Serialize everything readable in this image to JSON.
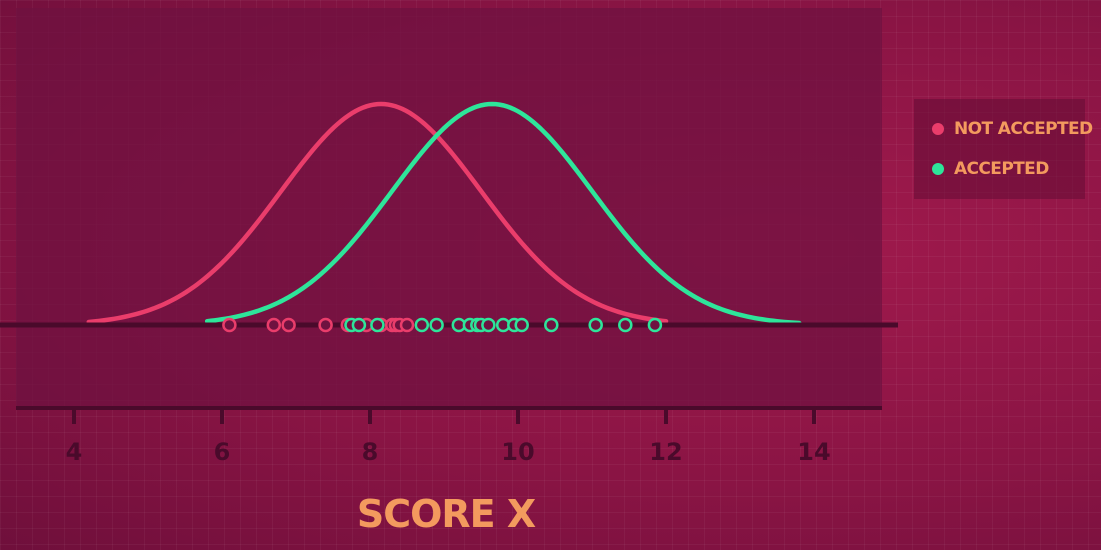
{
  "chart_data": {
    "type": "line",
    "title": "",
    "xlabel": "SCORE X",
    "ylabel": "",
    "xlim": [
      3.2,
      14.9
    ],
    "xticks": [
      4,
      6,
      8,
      10,
      12,
      14
    ],
    "grid": false,
    "legend_position": "right",
    "series": [
      {
        "name": "NOT ACCEPTED",
        "color": "#ea3d6b",
        "curve": {
          "mean": 8.15,
          "sd": 1.35,
          "x_range": [
            4.2,
            12.0
          ]
        },
        "points": [
          6.1,
          6.7,
          6.9,
          7.4,
          7.7,
          7.95,
          8.15,
          8.3,
          8.35,
          8.4,
          8.5
        ]
      },
      {
        "name": "ACCEPTED",
        "color": "#2ee59a",
        "curve": {
          "mean": 9.65,
          "sd": 1.35,
          "x_range": [
            5.8,
            13.8
          ]
        },
        "points": [
          7.75,
          7.85,
          8.1,
          8.7,
          8.9,
          9.2,
          9.35,
          9.45,
          9.5,
          9.6,
          9.8,
          9.95,
          10.05,
          10.45,
          11.05,
          11.45,
          11.85
        ]
      }
    ]
  }
}
